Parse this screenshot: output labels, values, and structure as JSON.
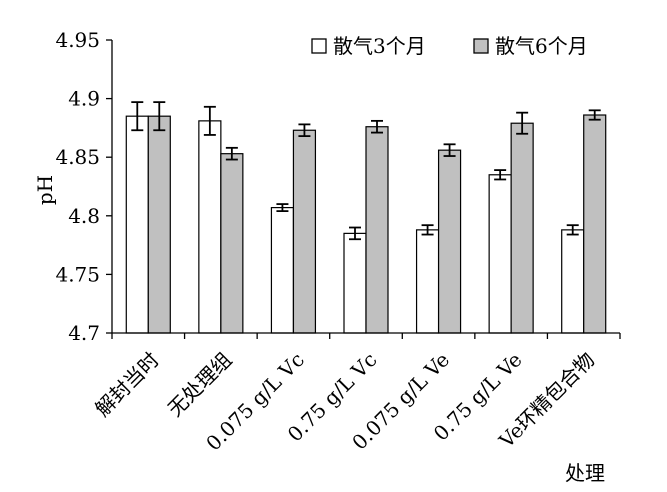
{
  "chart_data": {
    "type": "bar",
    "categories": [
      "解封当时",
      "无处理组",
      "0.075 g/L Vc",
      "0.75 g/L Vc",
      "0.075 g/L Ve",
      "0.75 g/L Ve",
      "Ve环精包合物"
    ],
    "series": [
      {
        "name": "散气3个月",
        "color": "#ffffff",
        "values": [
          4.885,
          4.881,
          4.807,
          4.785,
          4.788,
          4.835,
          4.788
        ],
        "errors": [
          0.012,
          0.012,
          0.003,
          0.005,
          0.004,
          0.004,
          0.004
        ]
      },
      {
        "name": "散气6个月",
        "color": "#c0c0c0",
        "values": [
          4.885,
          4.853,
          4.873,
          4.876,
          4.856,
          4.879,
          4.886
        ],
        "errors": [
          0.012,
          0.005,
          0.005,
          0.005,
          0.005,
          0.009,
          0.004
        ]
      }
    ],
    "title": "",
    "xlabel": "处理",
    "ylabel": "pH",
    "ylim": [
      4.7,
      4.95
    ],
    "yticks": [
      "4.7",
      "4.75",
      "4.8",
      "4.85",
      "4.9",
      "4.95"
    ],
    "grid": false,
    "legend_position": "top-right"
  }
}
